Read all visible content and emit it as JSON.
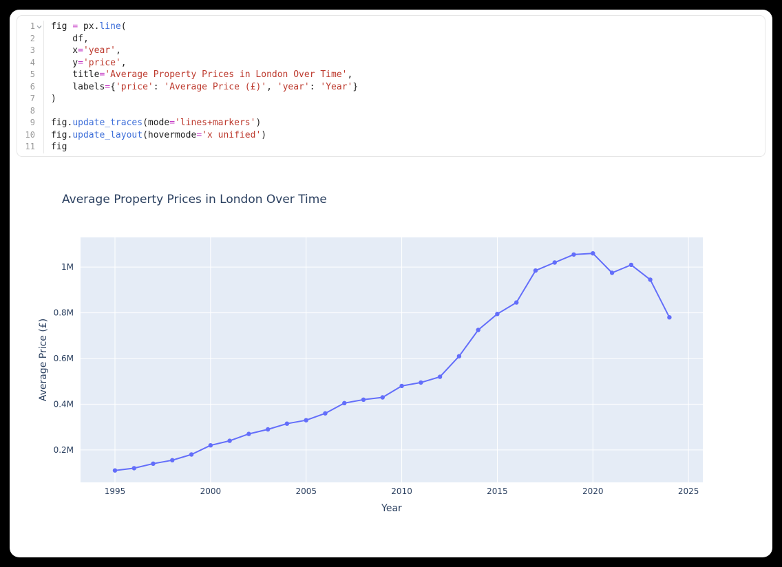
{
  "window": {
    "background": "#000000",
    "card_background": "#ffffff"
  },
  "code_cell": {
    "language": "python",
    "fold_icon": "chevron-down",
    "token_colors": {
      "plain": "#1f1f1f",
      "operator": "#c53ac5",
      "function": "#3e6fd9",
      "string": "#bd3a2e",
      "line_number": "#999999",
      "fold_icon": "#9aa0a6"
    },
    "lines": [
      {
        "num": "1",
        "fold": true,
        "tokens": [
          [
            "p",
            "fig "
          ],
          [
            "o",
            "="
          ],
          [
            "p",
            " px."
          ],
          [
            "f",
            "line"
          ],
          [
            "p",
            "("
          ]
        ]
      },
      {
        "num": "2",
        "tokens": [
          [
            "p",
            "    df,"
          ]
        ]
      },
      {
        "num": "3",
        "tokens": [
          [
            "p",
            "    x"
          ],
          [
            "o",
            "="
          ],
          [
            "s",
            "'year'"
          ],
          [
            "p",
            ","
          ]
        ]
      },
      {
        "num": "4",
        "tokens": [
          [
            "p",
            "    y"
          ],
          [
            "o",
            "="
          ],
          [
            "s",
            "'price'"
          ],
          [
            "p",
            ","
          ]
        ]
      },
      {
        "num": "5",
        "tokens": [
          [
            "p",
            "    title"
          ],
          [
            "o",
            "="
          ],
          [
            "s",
            "'Average Property Prices in London Over Time'"
          ],
          [
            "p",
            ","
          ]
        ]
      },
      {
        "num": "6",
        "tokens": [
          [
            "p",
            "    labels"
          ],
          [
            "o",
            "="
          ],
          [
            "p",
            "{"
          ],
          [
            "s",
            "'price'"
          ],
          [
            "p",
            ": "
          ],
          [
            "s",
            "'Average Price (£)'"
          ],
          [
            "p",
            ", "
          ],
          [
            "s",
            "'year'"
          ],
          [
            "p",
            ": "
          ],
          [
            "s",
            "'Year'"
          ],
          [
            "p",
            "}"
          ]
        ]
      },
      {
        "num": "7",
        "tokens": [
          [
            "p",
            ")"
          ]
        ]
      },
      {
        "num": "8",
        "tokens": []
      },
      {
        "num": "9",
        "tokens": [
          [
            "p",
            "fig."
          ],
          [
            "f",
            "update_traces"
          ],
          [
            "p",
            "(mode"
          ],
          [
            "o",
            "="
          ],
          [
            "s",
            "'lines+markers'"
          ],
          [
            "p",
            ")"
          ]
        ]
      },
      {
        "num": "10",
        "tokens": [
          [
            "p",
            "fig."
          ],
          [
            "f",
            "update_layout"
          ],
          [
            "p",
            "(hovermode"
          ],
          [
            "o",
            "="
          ],
          [
            "s",
            "'x unified'"
          ],
          [
            "p",
            ")"
          ]
        ]
      },
      {
        "num": "11",
        "tokens": [
          [
            "p",
            "fig"
          ]
        ]
      }
    ]
  },
  "chart_data": {
    "type": "line",
    "mode": "lines+markers",
    "title": "Average Property Prices in London Over Time",
    "xlabel": "Year",
    "ylabel": "Average Price (£)",
    "x": [
      1995,
      1996,
      1997,
      1998,
      1999,
      2000,
      2001,
      2002,
      2003,
      2004,
      2005,
      2006,
      2007,
      2008,
      2009,
      2010,
      2011,
      2012,
      2013,
      2014,
      2015,
      2016,
      2017,
      2018,
      2019,
      2020,
      2021,
      2022,
      2023,
      2024
    ],
    "y": [
      110000,
      120000,
      140000,
      155000,
      180000,
      220000,
      240000,
      270000,
      290000,
      315000,
      330000,
      360000,
      405000,
      420000,
      430000,
      480000,
      495000,
      520000,
      610000,
      725000,
      795000,
      845000,
      985000,
      1020000,
      1055000,
      1060000,
      975000,
      1010000,
      945000,
      780000
    ],
    "x_ticks": {
      "labels": [
        "1995",
        "2000",
        "2005",
        "2010",
        "2015",
        "2020",
        "2025"
      ],
      "values": [
        1995,
        2000,
        2005,
        2010,
        2015,
        2020,
        2025
      ]
    },
    "y_ticks": {
      "labels": [
        "0.2M",
        "0.4M",
        "0.6M",
        "0.8M",
        "1M"
      ],
      "values": [
        200000,
        400000,
        600000,
        800000,
        1000000
      ]
    },
    "xlim": [
      1993.2,
      2025.75
    ],
    "ylim": [
      58000,
      1130000
    ],
    "grid": true,
    "legend": "none",
    "colors": {
      "line": "#636efa",
      "plot_bg": "#e5ecf6",
      "grid": "#ffffff",
      "text": "#2a3f5f"
    }
  }
}
